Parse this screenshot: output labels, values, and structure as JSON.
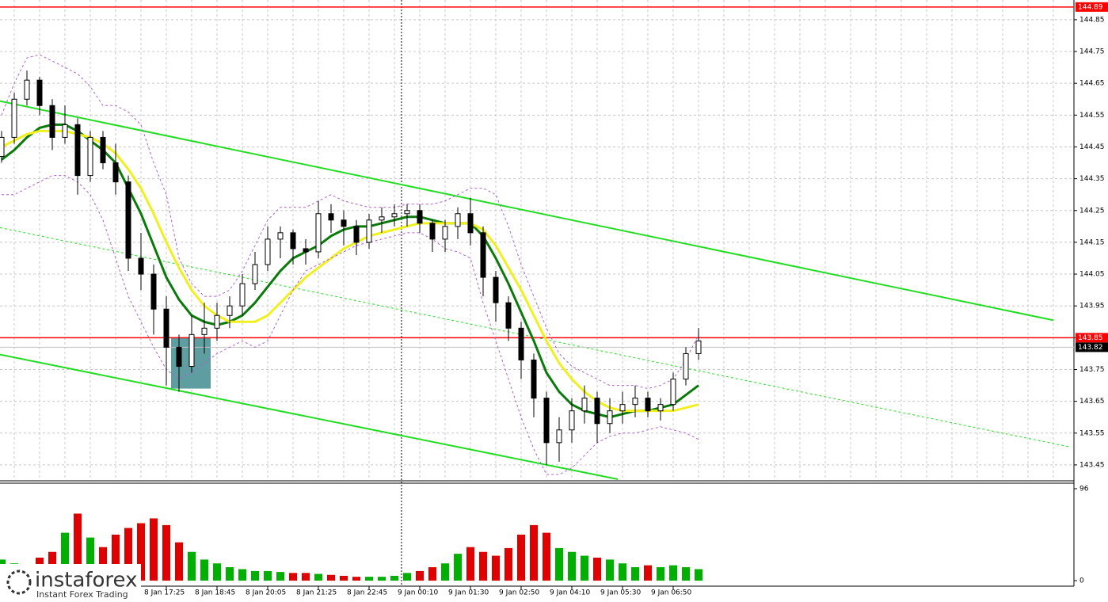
{
  "chart_data": {
    "type": "candlestick",
    "categories": [
      null,
      null,
      null,
      null,
      null,
      null,
      null,
      null,
      null,
      null,
      null,
      null,
      null,
      "8 Jan 17:25",
      null,
      null,
      null,
      "8 Jan 18:45",
      null,
      null,
      null,
      "8 Jan 20:05",
      null,
      null,
      null,
      "8 Jan 21:25",
      null,
      null,
      null,
      "8 Jan 22:45",
      null,
      null,
      null,
      "9 Jan 00:10",
      null,
      null,
      null,
      "9 Jan 01:30",
      null,
      null,
      null,
      "9 Jan 02:50",
      null,
      null,
      null,
      "9 Jan 04:10",
      null,
      null,
      null,
      "9 Jan 05:30",
      null,
      null,
      null,
      "9 Jan 06:50",
      null,
      null
    ],
    "candles": [
      [
        144.42,
        144.5,
        144.4,
        144.48
      ],
      [
        144.48,
        144.62,
        144.46,
        144.6
      ],
      [
        144.6,
        144.69,
        144.58,
        144.66
      ],
      [
        144.66,
        144.67,
        144.55,
        144.58
      ],
      [
        144.58,
        144.6,
        144.44,
        144.48
      ],
      [
        144.48,
        144.58,
        144.46,
        144.52
      ],
      [
        144.52,
        144.54,
        144.3,
        144.36
      ],
      [
        144.36,
        144.5,
        144.34,
        144.48
      ],
      [
        144.48,
        144.5,
        144.38,
        144.4
      ],
      [
        144.4,
        144.46,
        144.3,
        144.34
      ],
      [
        144.34,
        144.36,
        144.06,
        144.1
      ],
      [
        144.1,
        144.18,
        144.0,
        144.05
      ],
      [
        144.05,
        144.08,
        143.86,
        143.94
      ],
      [
        143.94,
        143.98,
        143.7,
        143.82
      ],
      [
        143.82,
        143.86,
        143.68,
        143.76
      ],
      [
        143.76,
        143.92,
        143.74,
        143.86
      ],
      [
        143.86,
        143.96,
        143.8,
        143.88
      ],
      [
        143.88,
        143.96,
        143.84,
        143.92
      ],
      [
        143.92,
        143.98,
        143.88,
        143.95
      ],
      [
        143.95,
        144.05,
        143.92,
        144.02
      ],
      [
        144.02,
        144.12,
        144.0,
        144.08
      ],
      [
        144.08,
        144.2,
        144.06,
        144.16
      ],
      [
        144.16,
        144.2,
        144.1,
        144.18
      ],
      [
        144.18,
        144.19,
        144.08,
        144.13
      ],
      [
        144.13,
        144.16,
        144.08,
        144.12
      ],
      [
        144.12,
        144.28,
        144.1,
        144.24
      ],
      [
        144.24,
        144.27,
        144.18,
        144.22
      ],
      [
        144.22,
        144.25,
        144.14,
        144.2
      ],
      [
        144.2,
        144.22,
        144.11,
        144.15
      ],
      [
        144.15,
        144.24,
        144.13,
        144.22
      ],
      [
        144.22,
        144.26,
        144.18,
        144.23
      ],
      [
        144.23,
        144.27,
        144.2,
        144.24
      ],
      [
        144.24,
        144.27,
        144.2,
        144.25
      ],
      [
        144.25,
        144.27,
        144.18,
        144.21
      ],
      [
        144.21,
        144.22,
        144.12,
        144.16
      ],
      [
        144.16,
        144.22,
        144.12,
        144.2
      ],
      [
        144.2,
        144.26,
        144.16,
        144.24
      ],
      [
        144.24,
        144.29,
        144.14,
        144.18
      ],
      [
        144.18,
        144.2,
        143.98,
        144.04
      ],
      [
        144.04,
        144.06,
        143.9,
        143.96
      ],
      [
        143.96,
        143.98,
        143.84,
        143.88
      ],
      [
        143.88,
        143.9,
        143.72,
        143.78
      ],
      [
        143.78,
        143.8,
        143.6,
        143.66
      ],
      [
        143.66,
        143.68,
        143.45,
        143.52
      ],
      [
        143.52,
        143.6,
        143.46,
        143.56
      ],
      [
        143.56,
        143.66,
        143.52,
        143.62
      ],
      [
        143.62,
        143.7,
        143.58,
        143.66
      ],
      [
        143.66,
        143.68,
        143.52,
        143.58
      ],
      [
        143.58,
        143.66,
        143.55,
        143.62
      ],
      [
        143.62,
        143.68,
        143.58,
        143.64
      ],
      [
        143.64,
        143.7,
        143.6,
        143.66
      ],
      [
        143.66,
        143.68,
        143.6,
        143.62
      ],
      [
        143.62,
        143.66,
        143.59,
        143.64
      ],
      [
        143.64,
        143.74,
        143.62,
        143.72
      ],
      [
        143.72,
        143.82,
        143.7,
        143.8
      ],
      [
        143.8,
        143.88,
        143.78,
        143.84
      ]
    ],
    "indicators": [
      {
        "color": "#0b7a0b",
        "width": 3,
        "dash": false,
        "values": [
          144.41,
          144.44,
          144.48,
          144.51,
          144.52,
          144.52,
          144.5,
          144.47,
          144.44,
          144.4,
          144.32,
          144.24,
          144.14,
          144.04,
          143.97,
          143.92,
          143.9,
          143.89,
          143.9,
          143.92,
          143.96,
          144.01,
          144.06,
          144.1,
          144.12,
          144.14,
          144.17,
          144.19,
          144.2,
          144.2,
          144.21,
          144.22,
          144.23,
          144.23,
          144.22,
          144.21,
          144.21,
          144.21,
          144.17,
          144.1,
          144.02,
          143.93,
          143.84,
          143.74,
          143.68,
          143.64,
          143.62,
          143.61,
          143.6,
          143.61,
          143.62,
          143.62,
          143.63,
          143.64,
          143.67,
          143.7
        ]
      },
      {
        "color": "#f0f020",
        "width": 3,
        "dash": false,
        "values": [
          144.45,
          144.47,
          144.49,
          144.5,
          144.5,
          144.5,
          144.49,
          144.48,
          144.46,
          144.43,
          144.38,
          144.32,
          144.24,
          144.15,
          144.07,
          144.0,
          143.95,
          143.92,
          143.9,
          143.9,
          143.9,
          143.92,
          143.96,
          144.0,
          144.04,
          144.07,
          144.1,
          144.13,
          144.15,
          144.17,
          144.18,
          144.19,
          144.2,
          144.21,
          144.21,
          144.21,
          144.21,
          144.21,
          144.19,
          144.14,
          144.07,
          144.0,
          143.92,
          143.84,
          143.77,
          143.72,
          143.68,
          143.65,
          143.63,
          143.62,
          143.62,
          143.62,
          143.62,
          143.62,
          143.63,
          143.64
        ]
      },
      {
        "color": "#b060d0",
        "width": 1,
        "dash": true,
        "values": [
          144.55,
          144.65,
          144.73,
          144.74,
          144.72,
          144.7,
          144.68,
          144.64,
          144.58,
          144.58,
          144.56,
          144.52,
          144.4,
          144.3,
          144.1,
          144.02,
          143.98,
          143.98,
          144.0,
          144.06,
          144.14,
          144.22,
          144.26,
          144.26,
          144.26,
          144.28,
          144.3,
          144.28,
          144.27,
          144.26,
          144.26,
          144.26,
          144.27,
          144.27,
          144.27,
          144.28,
          144.3,
          144.32,
          144.32,
          144.3,
          144.2,
          144.08,
          143.98,
          143.88,
          143.8,
          143.76,
          143.74,
          143.72,
          143.7,
          143.7,
          143.7,
          143.69,
          143.7,
          143.72,
          143.78,
          143.86
        ]
      },
      {
        "color": "#b060d0",
        "width": 1,
        "dash": true,
        "values": [
          144.3,
          144.3,
          144.32,
          144.34,
          144.36,
          144.36,
          144.34,
          144.3,
          144.22,
          144.1,
          143.98,
          143.9,
          143.82,
          143.75,
          143.72,
          143.74,
          143.77,
          143.8,
          143.82,
          143.84,
          143.82,
          143.84,
          143.92,
          144.0,
          144.06,
          144.08,
          144.1,
          144.12,
          144.14,
          144.15,
          144.16,
          144.17,
          144.18,
          144.18,
          144.16,
          144.13,
          144.12,
          144.1,
          143.96,
          143.84,
          143.72,
          143.6,
          143.5,
          143.42,
          143.42,
          143.44,
          143.48,
          143.52,
          143.54,
          143.55,
          143.55,
          143.56,
          143.57,
          143.56,
          143.55,
          143.53
        ]
      }
    ],
    "trendlines": [
      {
        "color": "#22dd22",
        "width": 2,
        "dash": false,
        "points": [
          [
            -0.125,
            144.594
          ],
          [
            83,
            143.905
          ]
        ]
      },
      {
        "color": "#22dd22",
        "width": 2,
        "dash": false,
        "points": [
          [
            -0.125,
            143.797
          ],
          [
            48.625,
            143.405
          ]
        ]
      },
      {
        "color": "#22dd22",
        "width": 1,
        "dash": true,
        "points": [
          [
            -0.125,
            144.196
          ],
          [
            84.25,
            143.507
          ]
        ]
      }
    ],
    "zones": [
      {
        "color": "#5f9ea0",
        "x": [
          13.375,
          16.5
        ],
        "y": [
          143.69,
          143.85
        ]
      }
    ],
    "vlines": [
      31.56
    ],
    "price_marks": [
      {
        "value": 144.89,
        "color": "#ff0000"
      },
      {
        "value": 143.85,
        "color": "#ff0000"
      },
      {
        "value": 143.82,
        "color": "#000000"
      }
    ],
    "ylim": [
      143.405,
      144.912
    ],
    "yticks": [
      143.45,
      143.55,
      143.65,
      143.75,
      143.85,
      143.95,
      144.05,
      144.15,
      144.25,
      144.35,
      144.45,
      144.55,
      144.65,
      144.75,
      144.85
    ],
    "grid": true,
    "volume": {
      "up_color": "#00b000",
      "down_color": "#e00000",
      "values": [
        22,
        18,
        16,
        24,
        30,
        50,
        70,
        45,
        35,
        48,
        55,
        60,
        65,
        58,
        40,
        30,
        22,
        18,
        14,
        12,
        10,
        10,
        9,
        8,
        8,
        7,
        6,
        5,
        4,
        4,
        4,
        5,
        8,
        10,
        14,
        18,
        28,
        35,
        30,
        26,
        34,
        48,
        58,
        50,
        34,
        30,
        26,
        24,
        22,
        18,
        14,
        16,
        14,
        16,
        14,
        12
      ],
      "ylim": [
        0,
        99.3
      ],
      "yticks": [
        0,
        96
      ]
    },
    "logo": {
      "name": "instaforex",
      "tagline": "Instant Forex Trading"
    }
  }
}
